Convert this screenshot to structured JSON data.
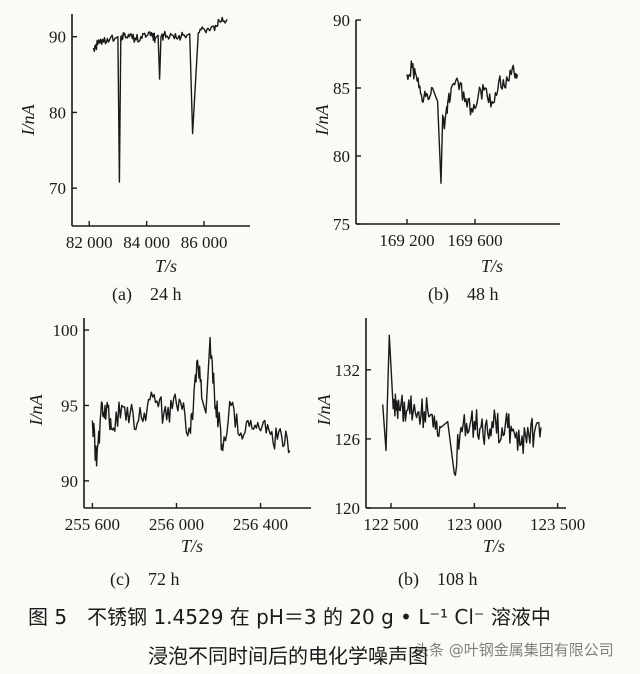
{
  "chart_data": [
    {
      "type": "line",
      "panel_label": "(a)　24 h",
      "xlabel": "T/s",
      "ylabel": "I/nA",
      "xlim": [
        81400,
        87600
      ],
      "ylim": [
        65,
        93
      ],
      "xticks": [
        82000,
        84000,
        86000
      ],
      "xtick_labels": [
        "82 000",
        "84 000",
        "86 000"
      ],
      "yticks": [
        70,
        80,
        90
      ],
      "ytick_labels": [
        "70",
        "80",
        "90"
      ],
      "series": [
        {
          "x": [
            82150,
            82300,
            82500,
            82700,
            82900,
            83000,
            83050,
            83100,
            83200,
            83400,
            83600,
            83800,
            84000,
            84200,
            84300,
            84400,
            84450,
            84500,
            84600,
            84800,
            85000,
            85200,
            85400,
            85500,
            85600,
            85800,
            86000,
            86200,
            86400,
            86600,
            86800
          ],
          "y": [
            88.5,
            89.0,
            89.3,
            89.5,
            89.8,
            90.0,
            70.8,
            90.0,
            90.2,
            90.0,
            89.8,
            90.0,
            90.1,
            90.0,
            89.8,
            90.2,
            84.4,
            90.0,
            90.2,
            90.0,
            90.4,
            90.0,
            90.2,
            90.4,
            77.2,
            90.5,
            91.0,
            90.8,
            91.5,
            92.0,
            92.3
          ]
        }
      ]
    },
    {
      "type": "line",
      "panel_label": "(b)　48 h",
      "xlabel": "T/s",
      "ylabel": "I/nA",
      "xlim": [
        168900,
        170100
      ],
      "ylim": [
        75,
        90
      ],
      "xticks": [
        169200,
        169600
      ],
      "xtick_labels": [
        "169 200",
        "169 600"
      ],
      "yticks": [
        75,
        80,
        85,
        90
      ],
      "ytick_labels": [
        "75",
        "80",
        "85",
        "90"
      ],
      "series": [
        {
          "x": [
            169200,
            169230,
            169260,
            169290,
            169320,
            169350,
            169380,
            169400,
            169410,
            169420,
            169440,
            169460,
            169500,
            169540,
            169580,
            169620,
            169660,
            169700,
            169740,
            169780,
            169820,
            169850
          ],
          "y": [
            86.0,
            86.5,
            85.5,
            84.0,
            84.5,
            85.0,
            84.0,
            78.0,
            83.0,
            82.0,
            84.0,
            85.0,
            85.5,
            84.0,
            83.5,
            84.5,
            85.0,
            84.0,
            85.5,
            85.0,
            86.5,
            86.0
          ]
        }
      ]
    },
    {
      "type": "line",
      "panel_label": "(c)　72 h",
      "xlabel": "T/s",
      "ylabel": "I/nA",
      "xlim": [
        255560,
        256640
      ],
      "ylim": [
        88.2,
        100.8
      ],
      "xticks": [
        255600,
        256000,
        256400
      ],
      "xtick_labels": [
        "255 600",
        "256 000",
        "256 400"
      ],
      "yticks": [
        90,
        95,
        100
      ],
      "ytick_labels": [
        "90",
        "95",
        "100"
      ],
      "series": [
        {
          "x": [
            255600,
            255620,
            255640,
            255660,
            255680,
            255700,
            255740,
            255780,
            255820,
            255860,
            255900,
            255940,
            255980,
            256020,
            256060,
            256080,
            256100,
            256120,
            256140,
            256160,
            256180,
            256200,
            256220,
            256260,
            256300,
            256340,
            256380,
            256420,
            256460,
            256500,
            256540
          ],
          "y": [
            94.0,
            91.0,
            94.5,
            95.0,
            94.0,
            93.5,
            95.0,
            94.5,
            94.0,
            94.8,
            95.2,
            94.5,
            94.8,
            95.2,
            93.5,
            94.8,
            98.0,
            95.5,
            94.5,
            99.5,
            96.0,
            94.0,
            92.0,
            95.0,
            93.0,
            94.0,
            93.5,
            94.0,
            92.5,
            93.0,
            92.0
          ]
        }
      ]
    },
    {
      "type": "line",
      "panel_label": "(b)　108 h",
      "xlabel": "T/s",
      "ylabel": "I/nA",
      "xlim": [
        122350,
        123550
      ],
      "ylim": [
        120,
        136.5
      ],
      "xticks": [
        122500,
        123000,
        123500
      ],
      "xtick_labels": [
        "122 500",
        "123 000",
        "123 500"
      ],
      "yticks": [
        120,
        126,
        132
      ],
      "ytick_labels": [
        "120",
        "126",
        "132"
      ],
      "series": [
        {
          "x": [
            122450,
            122470,
            122490,
            122510,
            122530,
            122560,
            122600,
            122640,
            122680,
            122720,
            122760,
            122800,
            122840,
            122880,
            122920,
            122960,
            123000,
            123040,
            123080,
            123120,
            123160,
            123200,
            123240,
            123280,
            123320,
            123360,
            123400
          ],
          "y": [
            129.0,
            125.0,
            135.0,
            129.5,
            128.5,
            129.0,
            128.5,
            129.0,
            128.0,
            128.5,
            128.0,
            127.0,
            127.5,
            123.0,
            127.0,
            126.5,
            127.5,
            127.0,
            126.5,
            128.5,
            126.0,
            127.0,
            126.5,
            125.5,
            127.0,
            126.5,
            127.0
          ]
        }
      ]
    }
  ],
  "caption": {
    "line1": "图 5　不锈钢 1.4529 在 pH＝3 的 20 g • L⁻¹ Cl⁻ 溶液中",
    "line2": "浸泡不同时间后的电化学噪声图"
  },
  "watermark": "头条 @叶钢金属集团有限公司",
  "colors": {
    "ink": "#1a1a1a",
    "paper": "#fbfaf6"
  }
}
